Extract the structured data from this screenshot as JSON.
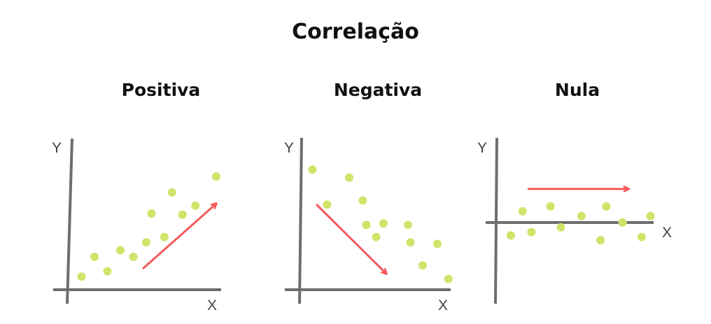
{
  "title": "Correlação",
  "colors": {
    "axis": "#6e6e6e",
    "point": "#d2e36a",
    "arrow": "#f25a5a",
    "text": "#111111"
  },
  "chart_data": [
    {
      "type": "scatter",
      "title": "Positiva",
      "xlabel": "X",
      "ylabel": "Y",
      "trend": "up",
      "points": [
        [
          1,
          1
        ],
        [
          2,
          2.5
        ],
        [
          3,
          1.4
        ],
        [
          4,
          3
        ],
        [
          5,
          2.5
        ],
        [
          6,
          3.6
        ],
        [
          6.4,
          5.8
        ],
        [
          7.4,
          4
        ],
        [
          8,
          7.4
        ],
        [
          8.8,
          5.7
        ],
        [
          9.8,
          6.4
        ],
        [
          11.4,
          8.6
        ]
      ]
    },
    {
      "type": "scatter",
      "title": "Negativa",
      "xlabel": "X",
      "ylabel": "Y",
      "trend": "down",
      "points": [
        [
          1,
          8.9
        ],
        [
          2.2,
          6.3
        ],
        [
          4,
          8.3
        ],
        [
          5.1,
          6.6
        ],
        [
          5.4,
          4.8
        ],
        [
          6.2,
          3.9
        ],
        [
          6.8,
          4.9
        ],
        [
          8.8,
          4.8
        ],
        [
          9,
          3.5
        ],
        [
          10,
          1.8
        ],
        [
          11.2,
          3.4
        ],
        [
          12.1,
          0.8
        ]
      ]
    },
    {
      "type": "scatter",
      "title": "Nula",
      "xlabel": "X",
      "ylabel": "Y",
      "trend": "flat",
      "points": [
        [
          1,
          -0.8
        ],
        [
          1.8,
          0.7
        ],
        [
          2.4,
          -0.6
        ],
        [
          3.7,
          1
        ],
        [
          4.4,
          -0.3
        ],
        [
          5.8,
          0.4
        ],
        [
          7.1,
          -1.1
        ],
        [
          7.5,
          1
        ],
        [
          8.6,
          0
        ],
        [
          9.9,
          -0.9
        ],
        [
          10.5,
          0.4
        ]
      ]
    }
  ]
}
